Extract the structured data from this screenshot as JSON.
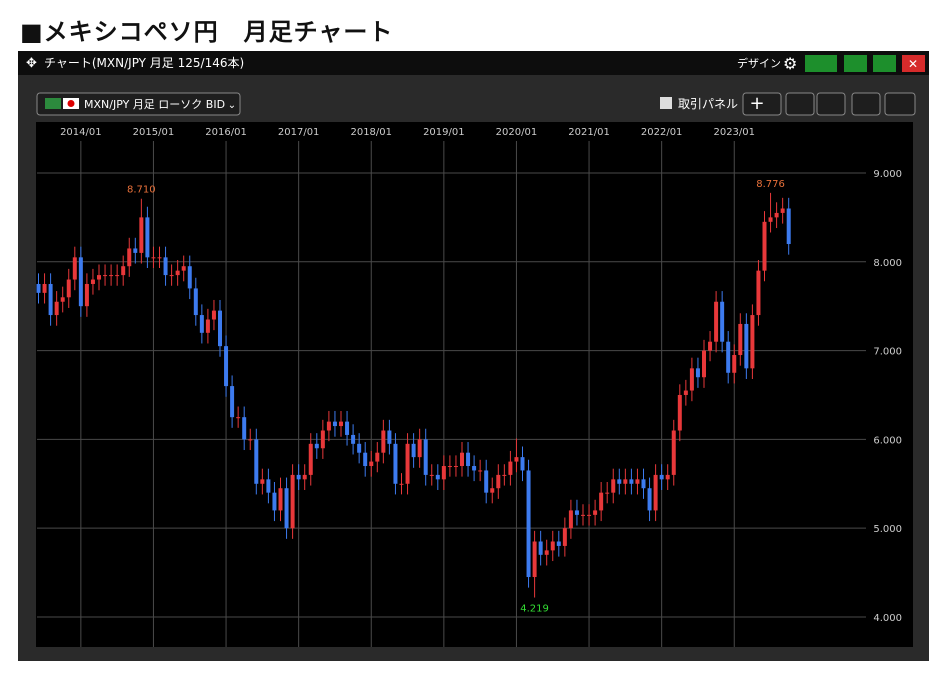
{
  "header": {
    "title": "■メキシコペソ円　月足チャート"
  },
  "window": {
    "title": "チャート(MXN/JPY 月足 125/146本)",
    "design": "デザイン",
    "symbol": "MXN/JPY 月足 ローソク BID",
    "panel": "取引パネル"
  },
  "chart_data": {
    "type": "candlestick",
    "x": [
      "2013/06",
      "2013/07",
      "2013/08",
      "2013/09",
      "2013/10",
      "2013/11",
      "2013/12",
      "2014/01",
      "2014/02",
      "2014/03",
      "2014/04",
      "2014/05",
      "2014/06",
      "2014/07",
      "2014/08",
      "2014/09",
      "2014/10",
      "2014/11",
      "2014/12",
      "2015/01",
      "2015/02",
      "2015/03",
      "2015/04",
      "2015/05",
      "2015/06",
      "2015/07",
      "2015/08",
      "2015/09",
      "2015/10",
      "2015/11",
      "2015/12",
      "2016/01",
      "2016/02",
      "2016/03",
      "2016/04",
      "2016/05",
      "2016/06",
      "2016/07",
      "2016/08",
      "2016/09",
      "2016/10",
      "2016/11",
      "2016/12",
      "2017/01",
      "2017/02",
      "2017/03",
      "2017/04",
      "2017/05",
      "2017/06",
      "2017/07",
      "2017/08",
      "2017/09",
      "2017/10",
      "2017/11",
      "2017/12",
      "2018/01",
      "2018/02",
      "2018/03",
      "2018/04",
      "2018/05",
      "2018/06",
      "2018/07",
      "2018/08",
      "2018/09",
      "2018/10",
      "2018/11",
      "2018/12",
      "2019/01",
      "2019/02",
      "2019/03",
      "2019/04",
      "2019/05",
      "2019/06",
      "2019/07",
      "2019/08",
      "2019/09",
      "2019/10",
      "2019/11",
      "2019/12",
      "2020/01",
      "2020/02",
      "2020/03",
      "2020/04",
      "2020/05",
      "2020/06",
      "2020/07",
      "2020/08",
      "2020/09",
      "2020/10",
      "2020/11",
      "2020/12",
      "2021/01",
      "2021/02",
      "2021/03",
      "2021/04",
      "2021/05",
      "2021/06",
      "2021/07",
      "2021/08",
      "2021/09",
      "2021/10",
      "2021/11",
      "2021/12",
      "2022/01",
      "2022/02",
      "2022/03",
      "2022/04",
      "2022/05",
      "2022/06",
      "2022/07",
      "2022/08",
      "2022/09",
      "2022/10",
      "2022/11",
      "2022/12",
      "2023/01",
      "2023/02",
      "2023/03",
      "2023/04",
      "2023/05",
      "2023/06",
      "2023/07",
      "2023/08",
      "2023/09",
      "2023/10"
    ],
    "ohlc": [
      [
        7.75,
        7.87,
        7.53,
        7.65
      ],
      [
        7.65,
        7.87,
        7.53,
        7.75
      ],
      [
        7.75,
        7.87,
        7.28,
        7.4
      ],
      [
        7.4,
        7.67,
        7.28,
        7.55
      ],
      [
        7.55,
        7.72,
        7.43,
        7.6
      ],
      [
        7.6,
        7.92,
        7.48,
        7.8
      ],
      [
        7.8,
        8.17,
        7.68,
        8.05
      ],
      [
        8.05,
        8.17,
        7.38,
        7.5
      ],
      [
        7.5,
        7.87,
        7.38,
        7.75
      ],
      [
        7.75,
        7.92,
        7.63,
        7.8
      ],
      [
        7.8,
        7.97,
        7.68,
        7.85
      ],
      [
        7.85,
        7.97,
        7.73,
        7.85
      ],
      [
        7.85,
        7.97,
        7.73,
        7.85
      ],
      [
        7.85,
        7.97,
        7.73,
        7.85
      ],
      [
        7.85,
        8.07,
        7.73,
        7.95
      ],
      [
        7.95,
        8.27,
        7.83,
        8.15
      ],
      [
        8.15,
        8.27,
        7.98,
        8.1
      ],
      [
        8.1,
        8.71,
        7.98,
        8.5
      ],
      [
        8.5,
        8.62,
        7.93,
        8.05
      ],
      [
        8.05,
        8.17,
        7.93,
        8.05
      ],
      [
        8.05,
        8.17,
        7.93,
        8.05
      ],
      [
        8.05,
        8.17,
        7.73,
        7.85
      ],
      [
        7.85,
        7.97,
        7.73,
        7.85
      ],
      [
        7.85,
        8.02,
        7.73,
        7.9
      ],
      [
        7.9,
        8.07,
        7.78,
        7.95
      ],
      [
        7.95,
        8.07,
        7.58,
        7.7
      ],
      [
        7.7,
        7.82,
        7.28,
        7.4
      ],
      [
        7.4,
        7.52,
        7.08,
        7.2
      ],
      [
        7.2,
        7.47,
        7.08,
        7.35
      ],
      [
        7.35,
        7.57,
        7.23,
        7.45
      ],
      [
        7.45,
        7.57,
        6.93,
        7.05
      ],
      [
        7.05,
        7.17,
        6.48,
        6.6
      ],
      [
        6.6,
        6.72,
        6.13,
        6.25
      ],
      [
        6.25,
        6.37,
        6.13,
        6.25
      ],
      [
        6.25,
        6.37,
        5.88,
        6.0
      ],
      [
        6.0,
        6.12,
        5.88,
        6.0
      ],
      [
        6.0,
        6.12,
        5.38,
        5.5
      ],
      [
        5.5,
        5.67,
        5.38,
        5.55
      ],
      [
        5.55,
        5.67,
        5.28,
        5.4
      ],
      [
        5.4,
        5.52,
        5.08,
        5.2
      ],
      [
        5.2,
        5.57,
        5.08,
        5.45
      ],
      [
        5.45,
        5.57,
        4.88,
        5.0
      ],
      [
        5.0,
        5.72,
        4.88,
        5.6
      ],
      [
        5.6,
        5.72,
        5.43,
        5.55
      ],
      [
        5.55,
        5.72,
        5.43,
        5.6
      ],
      [
        5.6,
        6.07,
        5.48,
        5.95
      ],
      [
        5.95,
        6.07,
        5.78,
        5.9
      ],
      [
        5.9,
        6.22,
        5.78,
        6.1
      ],
      [
        6.1,
        6.32,
        5.98,
        6.2
      ],
      [
        6.2,
        6.32,
        6.03,
        6.15
      ],
      [
        6.15,
        6.32,
        6.03,
        6.2
      ],
      [
        6.2,
        6.32,
        5.93,
        6.05
      ],
      [
        6.05,
        6.17,
        5.83,
        5.95
      ],
      [
        5.95,
        6.07,
        5.73,
        5.85
      ],
      [
        5.85,
        5.97,
        5.58,
        5.7
      ],
      [
        5.7,
        5.87,
        5.58,
        5.75
      ],
      [
        5.75,
        5.97,
        5.63,
        5.85
      ],
      [
        5.85,
        6.22,
        5.73,
        6.1
      ],
      [
        6.1,
        6.22,
        5.83,
        5.95
      ],
      [
        5.95,
        6.07,
        5.38,
        5.5
      ],
      [
        5.5,
        5.62,
        5.38,
        5.5
      ],
      [
        5.5,
        6.07,
        5.38,
        5.95
      ],
      [
        5.95,
        6.07,
        5.68,
        5.8
      ],
      [
        5.8,
        6.12,
        5.68,
        6.0
      ],
      [
        6.0,
        6.12,
        5.48,
        5.6
      ],
      [
        5.6,
        5.72,
        5.48,
        5.6
      ],
      [
        5.6,
        5.72,
        5.43,
        5.55
      ],
      [
        5.55,
        5.82,
        5.43,
        5.7
      ],
      [
        5.7,
        5.82,
        5.58,
        5.7
      ],
      [
        5.7,
        5.82,
        5.58,
        5.7
      ],
      [
        5.7,
        5.97,
        5.58,
        5.85
      ],
      [
        5.85,
        5.97,
        5.58,
        5.7
      ],
      [
        5.7,
        5.82,
        5.53,
        5.65
      ],
      [
        5.65,
        5.77,
        5.53,
        5.65
      ],
      [
        5.65,
        5.77,
        5.28,
        5.4
      ],
      [
        5.4,
        5.57,
        5.28,
        5.45
      ],
      [
        5.45,
        5.72,
        5.33,
        5.6
      ],
      [
        5.6,
        5.72,
        5.48,
        5.6
      ],
      [
        5.6,
        5.87,
        5.48,
        5.75
      ],
      [
        5.75,
        6.01,
        5.63,
        5.8
      ],
      [
        5.8,
        5.92,
        5.53,
        5.65
      ],
      [
        5.65,
        5.77,
        4.33,
        4.45
      ],
      [
        4.45,
        4.97,
        4.219,
        4.85
      ],
      [
        4.85,
        4.97,
        4.58,
        4.7
      ],
      [
        4.7,
        4.87,
        4.58,
        4.75
      ],
      [
        4.75,
        4.97,
        4.63,
        4.85
      ],
      [
        4.85,
        4.97,
        4.68,
        4.8
      ],
      [
        4.8,
        5.12,
        4.68,
        5.0
      ],
      [
        5.0,
        5.32,
        4.88,
        5.2
      ],
      [
        5.2,
        5.32,
        5.03,
        5.15
      ],
      [
        5.15,
        5.27,
        5.03,
        5.15
      ],
      [
        5.15,
        5.27,
        5.03,
        5.15
      ],
      [
        5.15,
        5.32,
        5.03,
        5.2
      ],
      [
        5.2,
        5.52,
        5.08,
        5.4
      ],
      [
        5.4,
        5.52,
        5.28,
        5.4
      ],
      [
        5.4,
        5.67,
        5.28,
        5.55
      ],
      [
        5.55,
        5.67,
        5.38,
        5.5
      ],
      [
        5.5,
        5.67,
        5.38,
        5.55
      ],
      [
        5.55,
        5.67,
        5.38,
        5.5
      ],
      [
        5.5,
        5.67,
        5.38,
        5.55
      ],
      [
        5.55,
        5.67,
        5.33,
        5.45
      ],
      [
        5.45,
        5.57,
        5.08,
        5.2
      ],
      [
        5.2,
        5.72,
        5.08,
        5.6
      ],
      [
        5.6,
        5.72,
        5.43,
        5.55
      ],
      [
        5.55,
        5.72,
        5.43,
        5.6
      ],
      [
        5.6,
        6.22,
        5.48,
        6.1
      ],
      [
        6.1,
        6.62,
        5.98,
        6.5
      ],
      [
        6.5,
        6.67,
        6.38,
        6.55
      ],
      [
        6.55,
        6.92,
        6.43,
        6.8
      ],
      [
        6.8,
        6.92,
        6.58,
        6.7
      ],
      [
        6.7,
        7.12,
        6.58,
        7.0
      ],
      [
        7.0,
        7.22,
        6.88,
        7.1
      ],
      [
        7.1,
        7.67,
        6.98,
        7.55
      ],
      [
        7.55,
        7.67,
        6.98,
        7.1
      ],
      [
        7.1,
        7.22,
        6.63,
        6.75
      ],
      [
        6.75,
        7.07,
        6.63,
        6.95
      ],
      [
        6.95,
        7.42,
        6.83,
        7.3
      ],
      [
        7.3,
        7.42,
        6.68,
        6.8
      ],
      [
        6.8,
        7.52,
        6.68,
        7.4
      ],
      [
        7.4,
        8.02,
        7.28,
        7.9
      ],
      [
        7.9,
        8.57,
        7.78,
        8.45
      ],
      [
        8.45,
        8.776,
        8.33,
        8.5
      ],
      [
        8.5,
        8.67,
        8.38,
        8.55
      ],
      [
        8.55,
        8.72,
        8.43,
        8.6
      ],
      [
        8.6,
        8.72,
        8.08,
        8.2
      ]
    ],
    "up_color": "#e8383a",
    "down_color": "#3d7bef",
    "ylim": [
      3.662,
      9.574
    ],
    "yticks": [
      {
        "value": 4,
        "label": "4.000"
      },
      {
        "value": 5,
        "label": "5.000"
      },
      {
        "value": 6,
        "label": "6.000"
      },
      {
        "value": 7,
        "label": "7.000"
      },
      {
        "value": 8,
        "label": "8.000"
      },
      {
        "value": 9,
        "label": "9.000"
      }
    ],
    "xticks": [
      "2014/01",
      "2015/01",
      "2016/01",
      "2017/01",
      "2018/01",
      "2019/01",
      "2020/01",
      "2021/01",
      "2022/01",
      "2023/01"
    ],
    "grid": true,
    "annotations": [
      {
        "x": "2014/11",
        "value": 8.71,
        "label": "8.710",
        "color": "#e8703a",
        "position": "above"
      },
      {
        "x": "2020/04",
        "value": 4.219,
        "label": "4.219",
        "color": "#33dd33",
        "position": "below"
      },
      {
        "x": "2023/07",
        "value": 8.776,
        "label": "8.776",
        "color": "#e8703a",
        "position": "above"
      }
    ]
  }
}
